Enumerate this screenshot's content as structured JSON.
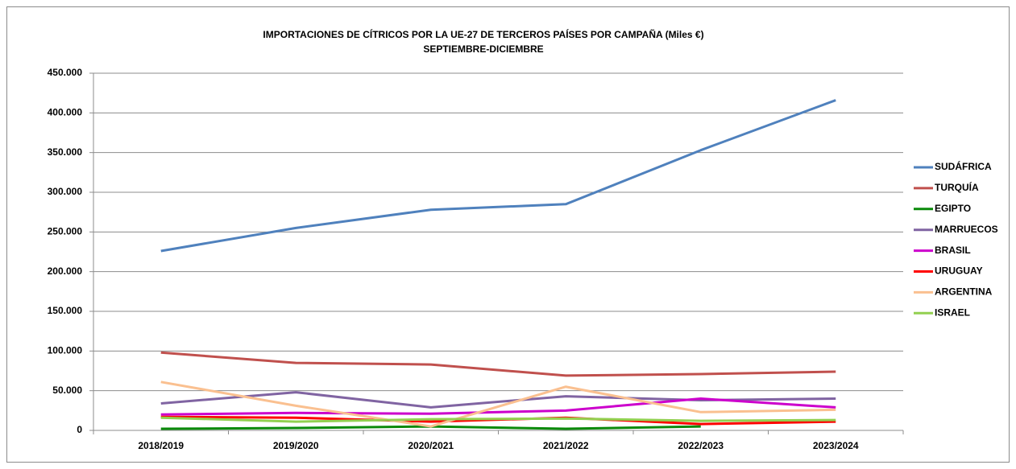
{
  "chart_data": {
    "type": "line",
    "title": "IMPORTACIONES DE CÍTRICOS POR LA UE-27  DE TERCEROS PAÍSES POR CAMPAÑA  (Miles €)",
    "subtitle": "SEPTIEMBRE-DICIEMBRE",
    "categories": [
      "2018/2019",
      "2019/2020",
      "2020/2021",
      "2021/2022",
      "2022/2023",
      "2023/2024"
    ],
    "series": [
      {
        "name": "SUDÁFRICA",
        "color": "#4f81bd",
        "values": [
          226000,
          255000,
          278000,
          285000,
          353000,
          416000
        ]
      },
      {
        "name": "TURQUÍA",
        "color": "#c0504d",
        "values": [
          98000,
          85000,
          83000,
          69000,
          71000,
          74000
        ]
      },
      {
        "name": "EGIPTO",
        "color": "#0a8a0a",
        "values": [
          2000,
          3000,
          5000,
          2000,
          5000,
          null
        ]
      },
      {
        "name": "MARRUECOS",
        "color": "#8064a2",
        "values": [
          34000,
          48000,
          29000,
          43000,
          38000,
          40000
        ]
      },
      {
        "name": "BRASIL",
        "color": "#cc00cc",
        "values": [
          20000,
          22000,
          21000,
          25000,
          40000,
          29000
        ]
      },
      {
        "name": "URUGUAY",
        "color": "#ff0000",
        "values": [
          17000,
          16000,
          11000,
          16000,
          8000,
          11000
        ]
      },
      {
        "name": "ARGENTINA",
        "color": "#fac090",
        "values": [
          61000,
          31000,
          5000,
          55000,
          23000,
          26000
        ]
      },
      {
        "name": "ISRAEL",
        "color": "#92d050",
        "values": [
          16000,
          11000,
          14000,
          15000,
          12000,
          13000
        ]
      }
    ],
    "ylim": [
      0,
      450000
    ],
    "yticks": [
      0,
      {
        "value": 50000,
        "label": "50.000"
      },
      {
        "value": 100000,
        "label": "100.000"
      },
      {
        "value": 150000,
        "label": "150.000"
      },
      {
        "value": 200000,
        "label": "200.000"
      },
      {
        "value": 250000,
        "label": "250.000"
      },
      {
        "value": 300000,
        "label": "300.000"
      },
      {
        "value": 350000,
        "label": "350.000"
      },
      {
        "value": 400000,
        "label": "400.000"
      },
      {
        "value": 450000,
        "label": "450.000"
      }
    ],
    "grid": true,
    "legend": "right"
  }
}
